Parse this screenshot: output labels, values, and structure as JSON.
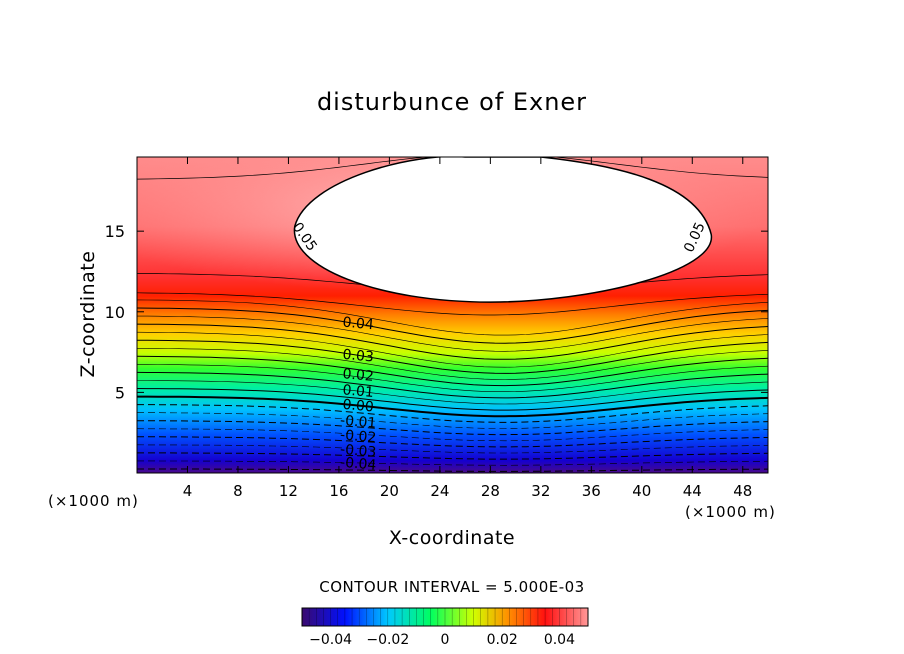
{
  "chart_data": {
    "type": "heatmap",
    "subtype": "filled-contour",
    "title": "disturbunce of Exner",
    "xlabel": "X-coordinate",
    "ylabel": "Z-coordinate",
    "x_unit": "(×1000 m)",
    "z_unit": "(×1000 m)",
    "x_ticks": [
      4,
      8,
      12,
      16,
      20,
      24,
      28,
      32,
      36,
      40,
      44,
      48
    ],
    "y_ticks": [
      5,
      10,
      15
    ],
    "xlim": [
      0,
      50
    ],
    "ylim": [
      0,
      19.6
    ],
    "contour_interval_text": "CONTOUR INTERVAL = 5.000E-03",
    "contour_interval": 0.005,
    "negative_contours": "dashed",
    "zero_contour": "thick",
    "contour_labels": [
      {
        "text": "0.05",
        "x": 13,
        "z": 14.5
      },
      {
        "text": "0.05",
        "x": 44.5,
        "z": 14.5
      },
      {
        "text": "0.04",
        "x": 17.5,
        "z": 9
      },
      {
        "text": "0.03",
        "x": 17.5,
        "z": 7
      },
      {
        "text": "0.02",
        "x": 17.5,
        "z": 5.8
      },
      {
        "text": "0.01",
        "x": 17.5,
        "z": 4.8
      },
      {
        "text": "0.00",
        "x": 17.5,
        "z": 3.9
      },
      {
        "text": "-0.01",
        "x": 17.5,
        "z": 2.9
      },
      {
        "text": "-0.02",
        "x": 17.5,
        "z": 2.0
      },
      {
        "text": "-0.03",
        "x": 17.5,
        "z": 1.1
      },
      {
        "text": "-0.04",
        "x": 17.5,
        "z": 0.3
      }
    ],
    "field_summary": {
      "value_at_bottom": -0.045,
      "value_at_top_region": 0.05,
      "max_region_above_0_05": {
        "x_range": [
          12.5,
          45.5
        ],
        "z_range": [
          10.6,
          19.6
        ],
        "center_x": 28
      }
    },
    "colorbar": {
      "vmin": -0.05,
      "vmax": 0.05,
      "tick_values": [
        -0.04,
        -0.02,
        0,
        0.02,
        0.04
      ],
      "tick_labels": [
        "−0.04",
        "−0.02",
        "0",
        "0.02",
        "0.04"
      ],
      "colors": [
        "#3a0a6e",
        "#0000ff",
        "#00c8ff",
        "#00ff40",
        "#ffff00",
        "#ff8000",
        "#ff0000",
        "#ff9090"
      ]
    }
  }
}
